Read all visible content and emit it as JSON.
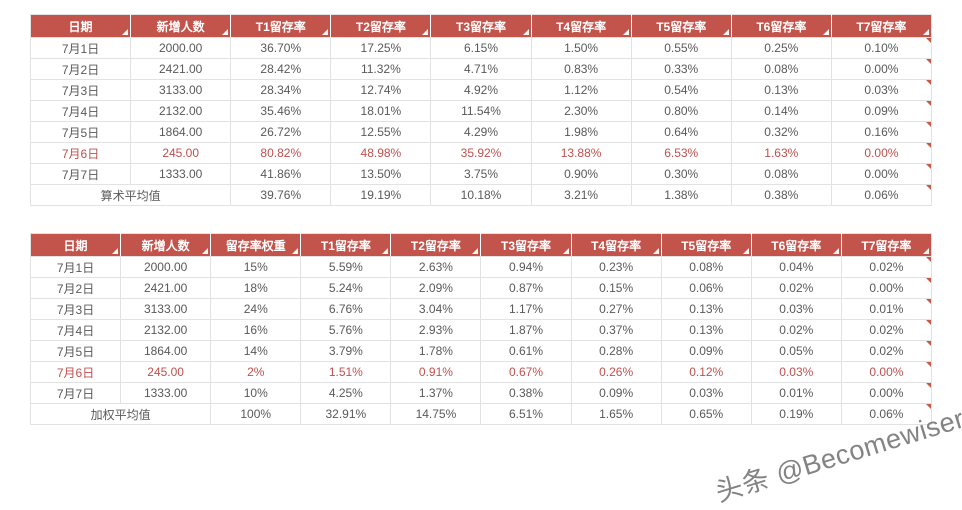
{
  "colors": {
    "header_bg": "#C2544C",
    "header_text": "#FFFFFF",
    "body_text": "#595959",
    "highlight": "#C0504D",
    "border": "#E2E2E2",
    "marker": "#C75A44",
    "watermark_text": "#686868"
  },
  "watermark": "头条 @Becomewiser",
  "chart_data": [
    {
      "type": "table",
      "columns": [
        "日期",
        "新增人数",
        "T1留存率",
        "T2留存率",
        "T3留存率",
        "T4留存率",
        "T5留存率",
        "T6留存率",
        "T7留存率"
      ],
      "rows": [
        {
          "highlight": false,
          "cells": [
            "7月1日",
            "2000.00",
            "36.70%",
            "17.25%",
            "6.15%",
            "1.50%",
            "0.55%",
            "0.25%",
            "0.10%"
          ]
        },
        {
          "highlight": false,
          "cells": [
            "7月2日",
            "2421.00",
            "28.42%",
            "11.32%",
            "4.71%",
            "0.83%",
            "0.33%",
            "0.08%",
            "0.00%"
          ]
        },
        {
          "highlight": false,
          "cells": [
            "7月3日",
            "3133.00",
            "28.34%",
            "12.74%",
            "4.92%",
            "1.12%",
            "0.54%",
            "0.13%",
            "0.03%"
          ]
        },
        {
          "highlight": false,
          "cells": [
            "7月4日",
            "2132.00",
            "35.46%",
            "18.01%",
            "11.54%",
            "2.30%",
            "0.80%",
            "0.14%",
            "0.09%"
          ]
        },
        {
          "highlight": false,
          "cells": [
            "7月5日",
            "1864.00",
            "26.72%",
            "12.55%",
            "4.29%",
            "1.98%",
            "0.64%",
            "0.32%",
            "0.16%"
          ]
        },
        {
          "highlight": true,
          "cells": [
            "7月6日",
            "245.00",
            "80.82%",
            "48.98%",
            "35.92%",
            "13.88%",
            "6.53%",
            "1.63%",
            "0.00%"
          ]
        },
        {
          "highlight": false,
          "cells": [
            "7月7日",
            "1333.00",
            "41.86%",
            "13.50%",
            "3.75%",
            "0.90%",
            "0.30%",
            "0.08%",
            "0.00%"
          ]
        }
      ],
      "summary": {
        "label": "算术平均值",
        "values": [
          "39.76%",
          "19.19%",
          "10.18%",
          "3.21%",
          "1.38%",
          "0.38%",
          "0.06%"
        ]
      }
    },
    {
      "type": "table",
      "columns": [
        "日期",
        "新增人数",
        "留存率权重",
        "T1留存率",
        "T2留存率",
        "T3留存率",
        "T4留存率",
        "T5留存率",
        "T6留存率",
        "T7留存率"
      ],
      "rows": [
        {
          "highlight": false,
          "cells": [
            "7月1日",
            "2000.00",
            "15%",
            "5.59%",
            "2.63%",
            "0.94%",
            "0.23%",
            "0.08%",
            "0.04%",
            "0.02%"
          ]
        },
        {
          "highlight": false,
          "cells": [
            "7月2日",
            "2421.00",
            "18%",
            "5.24%",
            "2.09%",
            "0.87%",
            "0.15%",
            "0.06%",
            "0.02%",
            "0.00%"
          ]
        },
        {
          "highlight": false,
          "cells": [
            "7月3日",
            "3133.00",
            "24%",
            "6.76%",
            "3.04%",
            "1.17%",
            "0.27%",
            "0.13%",
            "0.03%",
            "0.01%"
          ]
        },
        {
          "highlight": false,
          "cells": [
            "7月4日",
            "2132.00",
            "16%",
            "5.76%",
            "2.93%",
            "1.87%",
            "0.37%",
            "0.13%",
            "0.02%",
            "0.02%"
          ]
        },
        {
          "highlight": false,
          "cells": [
            "7月5日",
            "1864.00",
            "14%",
            "3.79%",
            "1.78%",
            "0.61%",
            "0.28%",
            "0.09%",
            "0.05%",
            "0.02%"
          ]
        },
        {
          "highlight": true,
          "cells": [
            "7月6日",
            "245.00",
            "2%",
            "1.51%",
            "0.91%",
            "0.67%",
            "0.26%",
            "0.12%",
            "0.03%",
            "0.00%"
          ]
        },
        {
          "highlight": false,
          "cells": [
            "7月7日",
            "1333.00",
            "10%",
            "4.25%",
            "1.37%",
            "0.38%",
            "0.09%",
            "0.03%",
            "0.01%",
            "0.00%"
          ]
        }
      ],
      "summary": {
        "label": "加权平均值",
        "values": [
          "100%",
          "32.91%",
          "14.75%",
          "6.51%",
          "1.65%",
          "0.65%",
          "0.19%",
          "0.06%"
        ]
      }
    }
  ]
}
